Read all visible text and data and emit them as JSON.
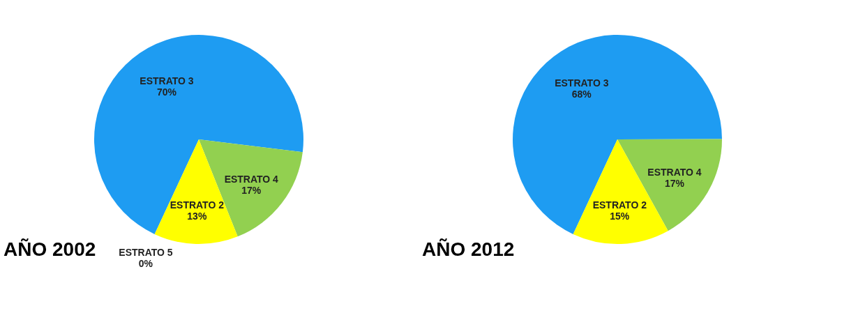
{
  "chart_data": [
    {
      "type": "pie",
      "title": "AÑO 2002",
      "categories": [
        "ESTRATO 3",
        "ESTRATO 4",
        "ESTRATO 5",
        "ESTRATO 2"
      ],
      "values": [
        70,
        17,
        0,
        13
      ],
      "value_labels": [
        "70%",
        "17%",
        "0%",
        "13%"
      ],
      "colors": [
        "#1e9cf2",
        "#92d050",
        "#7a7a7a",
        "#ffff00"
      ],
      "legend": false
    },
    {
      "type": "pie",
      "title": "AÑO 2012",
      "categories": [
        "ESTRATO 3",
        "ESTRATO 4",
        "ESTRATO 2"
      ],
      "values": [
        68,
        17,
        15
      ],
      "value_labels": [
        "68%",
        "17%",
        "15%"
      ],
      "colors": [
        "#1e9cf2",
        "#92d050",
        "#ffff00"
      ],
      "legend": false
    }
  ]
}
